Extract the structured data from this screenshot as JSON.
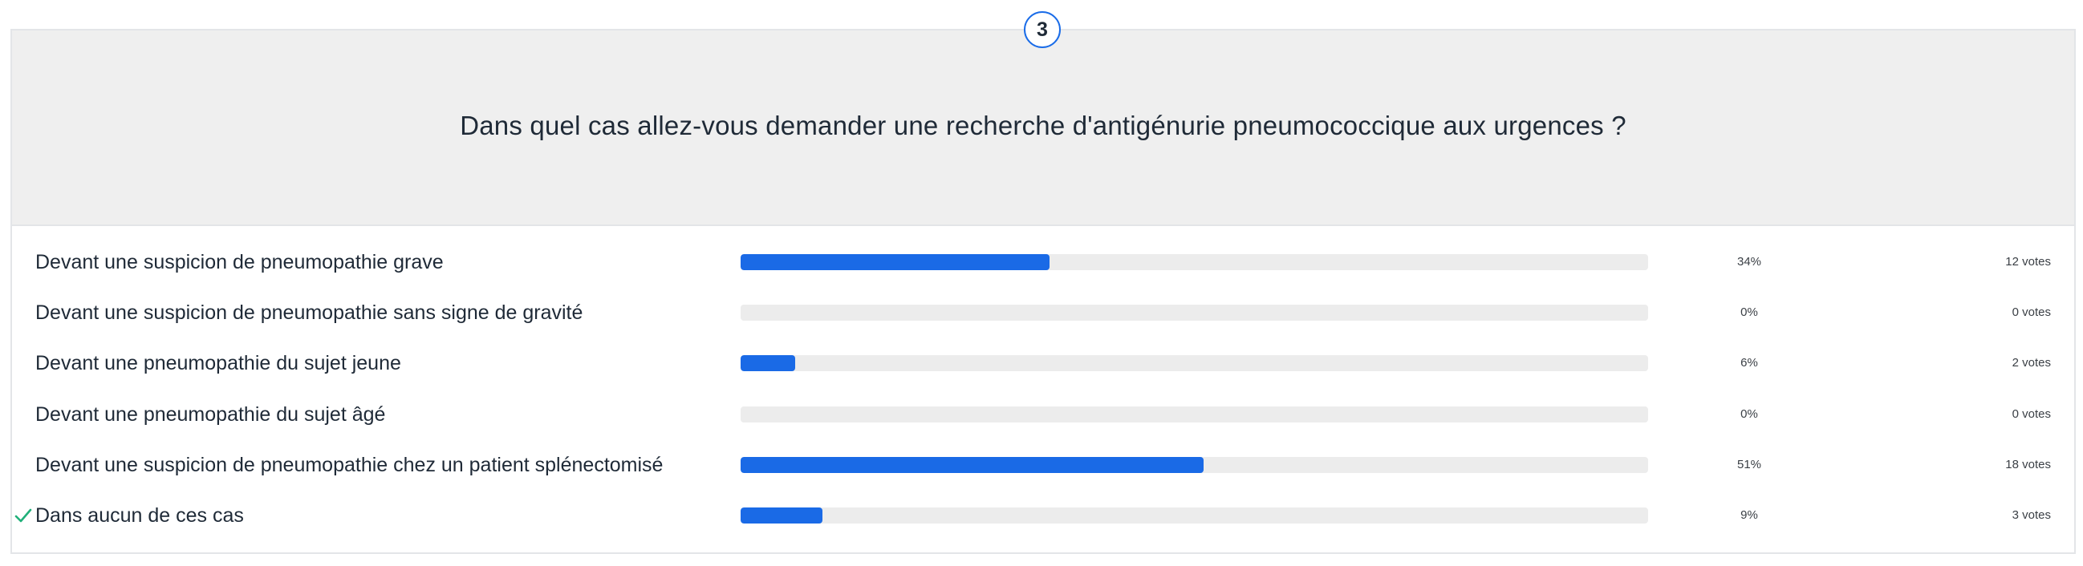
{
  "question": {
    "number": "3",
    "text": "Dans quel cas allez-vous demander une recherche d'antigénurie pneumococcique aux urgences ?"
  },
  "answers": [
    {
      "label": "Devant une suspicion de pneumopathie grave",
      "percent_text": "34%",
      "percent": 34,
      "votes_text": "12 votes",
      "correct": false
    },
    {
      "label": "Devant une suspicion de pneumopathie sans signe de gravité",
      "percent_text": "0%",
      "percent": 0,
      "votes_text": "0 votes",
      "correct": false
    },
    {
      "label": "Devant une pneumopathie du sujet jeune",
      "percent_text": "6%",
      "percent": 6,
      "votes_text": "2 votes",
      "correct": false
    },
    {
      "label": "Devant une pneumopathie du sujet âgé",
      "percent_text": "0%",
      "percent": 0,
      "votes_text": "0 votes",
      "correct": false
    },
    {
      "label": "Devant une suspicion de pneumopathie chez un patient splénectomisé",
      "percent_text": "51%",
      "percent": 51,
      "votes_text": "18 votes",
      "correct": false
    },
    {
      "label": "Dans aucun de ces cas",
      "percent_text": "9%",
      "percent": 9,
      "votes_text": "3 votes",
      "correct": true
    }
  ],
  "colors": {
    "bar_fill": "#1a6ae6",
    "bar_track": "#ececec",
    "badge_border": "#1a6ce8",
    "check": "#21b07a"
  },
  "icons": {
    "correct": "check-icon"
  }
}
